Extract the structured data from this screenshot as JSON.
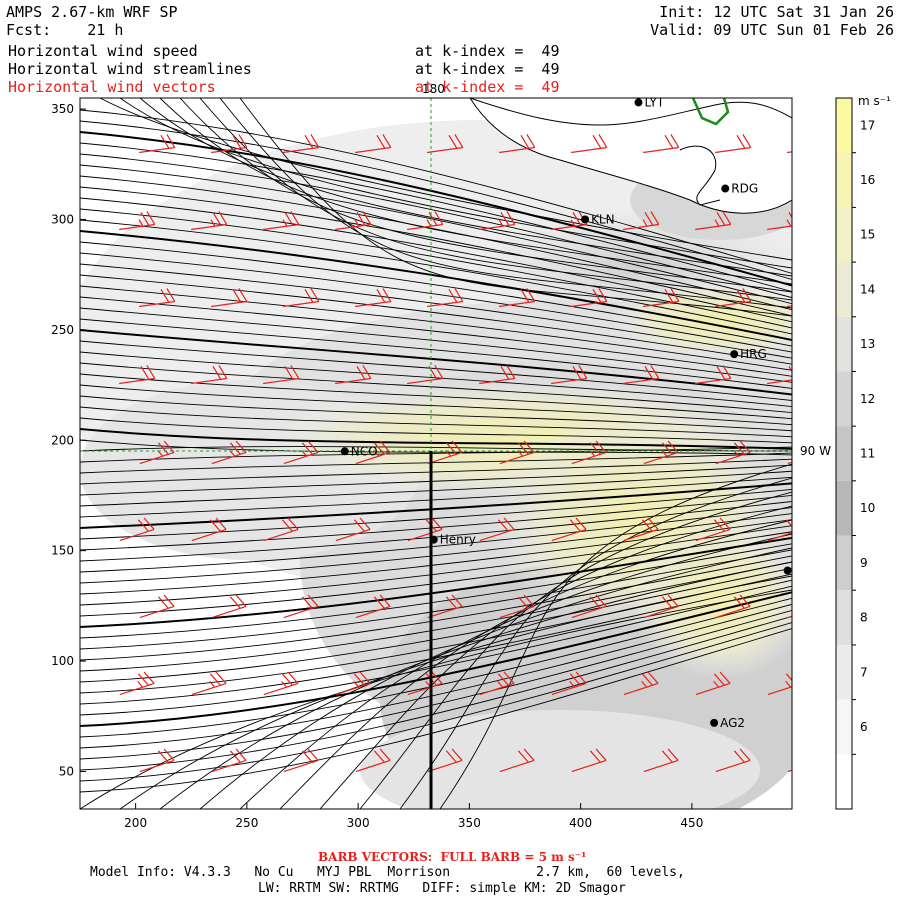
{
  "header": {
    "title": "AMPS 2.67-km WRF SP",
    "forecast": "Fcst:    21 h",
    "init": "Init: 12 UTC Sat 31 Jan 26",
    "valid": "Valid: 09 UTC Sun 01 Feb 26"
  },
  "fields": [
    {
      "label": "Horizontal wind speed",
      "level": "at k-index =  49",
      "color": "#000000"
    },
    {
      "label": "Horizontal wind streamlines",
      "level": "at k-index =  49",
      "color": "#000000"
    },
    {
      "label": "Horizontal wind vectors",
      "level": "at k-index =  49",
      "color": "#e8201c"
    }
  ],
  "map": {
    "x_ticks": [
      "200",
      "250",
      "300",
      "350",
      "400",
      "450"
    ],
    "y_ticks": [
      "50",
      "100",
      "150",
      "200",
      "250",
      "300",
      "350"
    ],
    "x_range": [
      175,
      495
    ],
    "y_range": [
      33,
      355
    ],
    "reference_lines": {
      "vertical_label": "180",
      "horizontal_label": "90 W"
    },
    "stations": [
      {
        "name": "LYT",
        "x": 426,
        "y": 353
      },
      {
        "name": "RDG",
        "x": 465,
        "y": 314
      },
      {
        "name": "KLN",
        "x": 402,
        "y": 300
      },
      {
        "name": "HRG",
        "x": 469,
        "y": 239
      },
      {
        "name": "NCO",
        "x": 294,
        "y": 195
      },
      {
        "name": "Henry",
        "x": 334,
        "y": 155
      },
      {
        "name": "AG2",
        "x": 460,
        "y": 72
      },
      {
        "name": "",
        "x": 493,
        "y": 141
      }
    ],
    "colors": {
      "barbs": "#e8201c",
      "streamlines": "#000000",
      "coast": "#000000",
      "ice_edge": "#1c8a1c",
      "ref_line": "#2a9a2a"
    }
  },
  "colorbar": {
    "unit": "m s⁻¹",
    "ticks": [
      "17",
      "16",
      "15",
      "14",
      "13",
      "12",
      "11",
      "10",
      "9",
      "8",
      "7",
      "6"
    ],
    "colors": [
      "#fbf9a0",
      "#f7f5b4",
      "#f1f0c6",
      "#ecebd4",
      "#e2e2df",
      "#d4d4d4",
      "#c6c6c6",
      "#b8b8b8",
      "#cfcfcf",
      "#dedede",
      "#ebebeb",
      "#f6f6f6",
      "#ffffff"
    ]
  },
  "footer": {
    "barb_note": "BARB VECTORS:  FULL BARB = 5 m s⁻¹",
    "model_line1": "Model Info: V4.3.3   No Cu   MYJ PBL  Morrison           2.7 km,  60 levels,",
    "model_line2": "LW: RRTM SW: RRTMG   DIFF: simple KM: 2D Smagor"
  }
}
